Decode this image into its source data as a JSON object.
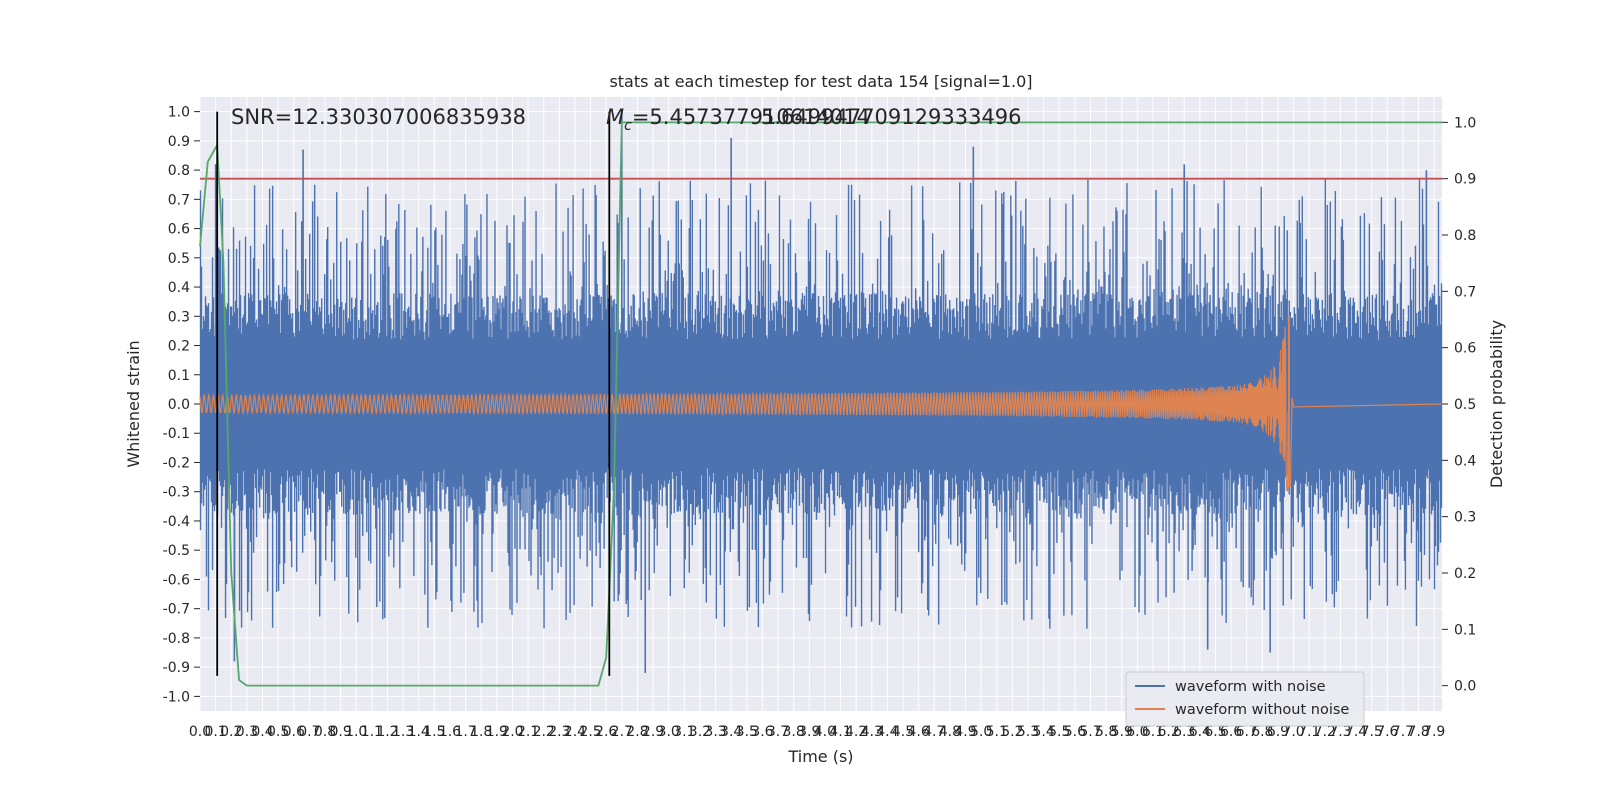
{
  "chart_data": {
    "type": "line",
    "title": "stats at each timestep for test data 154 [signal=1.0]",
    "xlabel": "Time (s)",
    "ylabel": "Whitened strain",
    "y2label": "Detection probability",
    "xlim": [
      0.0,
      7.95
    ],
    "ylim": [
      -1.05,
      1.05
    ],
    "y2lim": [
      -0.045,
      1.045
    ],
    "xticks": [
      0.0,
      0.1,
      0.2,
      0.3,
      0.4,
      0.5,
      0.6,
      0.7,
      0.8,
      0.9,
      1.0,
      1.1,
      1.2,
      1.3,
      1.4,
      1.5,
      1.6,
      1.7,
      1.8,
      1.9,
      2.0,
      2.1,
      2.2,
      2.3,
      2.4,
      2.5,
      2.6,
      2.7,
      2.8,
      2.9,
      3.0,
      3.1,
      3.2,
      3.3,
      3.4,
      3.5,
      3.6,
      3.7,
      3.8,
      3.9,
      4.0,
      4.1,
      4.2,
      4.3,
      4.4,
      4.5,
      4.6,
      4.7,
      4.8,
      4.9,
      5.0,
      5.1,
      5.2,
      5.3,
      5.4,
      5.5,
      5.6,
      5.7,
      5.8,
      5.9,
      6.0,
      6.1,
      6.2,
      6.3,
      6.4,
      6.5,
      6.6,
      6.7,
      6.8,
      6.9,
      7.0,
      7.1,
      7.2,
      7.3,
      7.4,
      7.5,
      7.6,
      7.7,
      7.8,
      7.9
    ],
    "yticks": [
      -1.0,
      -0.9,
      -0.8,
      -0.7,
      -0.6,
      -0.5,
      -0.4,
      -0.3,
      -0.2,
      -0.1,
      0.0,
      0.1,
      0.2,
      0.3,
      0.4,
      0.5,
      0.6,
      0.7,
      0.8,
      0.9,
      1.0
    ],
    "y2ticks": [
      0.0,
      0.1,
      0.2,
      0.3,
      0.4,
      0.5,
      0.6,
      0.7,
      0.8,
      0.9,
      1.0
    ],
    "grid": true,
    "legend_position": "lower-right",
    "series": [
      {
        "name": "waveform with noise",
        "axis": "left",
        "color": "#4c72b0",
        "envelope": "stationary noise band roughly +/-0.22 to +/-0.35 with spikes to about +/-0.9",
        "notable_peaks": [
          {
            "x": 0.1,
            "y": 0.82
          },
          {
            "x": 0.66,
            "y": 0.87
          },
          {
            "x": 2.7,
            "y": 1.0
          },
          {
            "x": 3.4,
            "y": 0.91
          },
          {
            "x": 4.95,
            "y": 0.88
          },
          {
            "x": 6.3,
            "y": 0.82
          },
          {
            "x": 7.85,
            "y": 0.8
          },
          {
            "x": 0.22,
            "y": -0.88
          },
          {
            "x": 2.85,
            "y": -0.92
          },
          {
            "x": 6.45,
            "y": -0.84
          },
          {
            "x": 6.85,
            "y": -0.85
          }
        ]
      },
      {
        "name": "waveform without noise",
        "axis": "left",
        "color": "#dd8452",
        "kind": "chirp",
        "merger_time": 6.97,
        "amplitude_start": 0.03,
        "amplitude_peak": 0.3
      },
      {
        "name": "detection probability",
        "axis": "right",
        "color": "#55a868",
        "x": [
          0.0,
          0.05,
          0.11,
          0.15,
          0.2,
          0.25,
          0.3,
          2.55,
          2.6,
          2.65,
          2.7,
          7.95
        ],
        "y": [
          0.78,
          0.93,
          0.96,
          0.75,
          0.2,
          0.01,
          0.0,
          0.0,
          0.05,
          0.35,
          1.0,
          1.0
        ]
      }
    ],
    "annotations": {
      "snr": "SNR=12.330307006835938",
      "mc_symbol": "M",
      "mc_subscript": "c",
      "mc_value": "=5.457377910614014",
      "mc_overlap": "5.649947709129333496",
      "threshold_y2": 0.9,
      "threshold_color": "#c44e52",
      "vlines_x": [
        0.11,
        2.62
      ],
      "vline_color": "#000000"
    },
    "legend": [
      "waveform with noise",
      "waveform without noise"
    ]
  }
}
